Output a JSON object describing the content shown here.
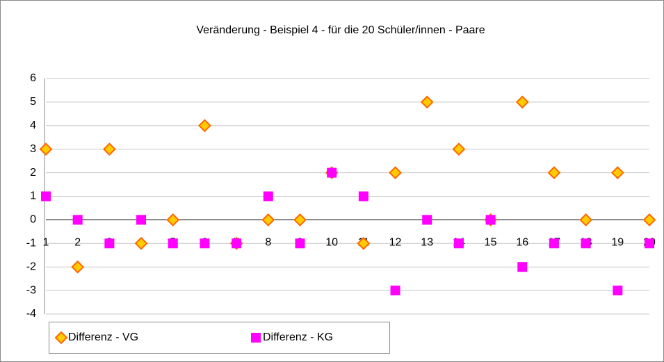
{
  "chart_data": {
    "type": "scatter",
    "title": "Veränderung - Beispiel 4 - für die 20 Schüler/innen - Paare",
    "categories": [
      "1",
      "2",
      "3",
      "4",
      "5",
      "6",
      "7",
      "8",
      "9",
      "10",
      "11",
      "12",
      "13",
      "14",
      "15",
      "16",
      "17",
      "18",
      "19",
      "20"
    ],
    "series": [
      {
        "name": "Differenz - VG",
        "color": "#ffcc00",
        "edge": "#ff6600",
        "marker": "diamond",
        "values": [
          3,
          -2,
          3,
          -1,
          0,
          4,
          -1,
          0,
          0,
          2,
          -1,
          2,
          5,
          3,
          0,
          5,
          2,
          0,
          2,
          0
        ]
      },
      {
        "name": "Differenz - KG",
        "color": "#ff00ff",
        "marker": "square",
        "values": [
          1,
          0,
          -1,
          0,
          -1,
          -1,
          -1,
          1,
          -1,
          2,
          1,
          -3,
          0,
          -1,
          0,
          -2,
          -1,
          -1,
          -3,
          -1
        ]
      }
    ],
    "ylim": [
      -4,
      6
    ],
    "yticks": [
      -4,
      -3,
      -2,
      -1,
      0,
      1,
      2,
      3,
      4,
      5,
      6
    ],
    "grid": true,
    "legend": "bottom"
  }
}
